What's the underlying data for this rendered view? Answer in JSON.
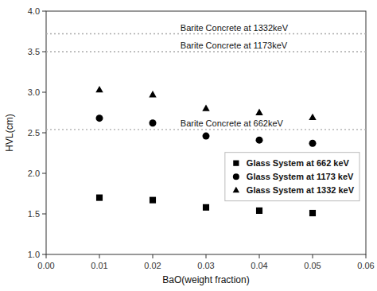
{
  "chart_data": {
    "type": "scatter",
    "xlabel": "BaO(weight fraction)",
    "ylabel": "HVL(cm)",
    "x": [
      0.01,
      0.02,
      0.03,
      0.04,
      0.05
    ],
    "series": [
      {
        "name": "Glass System at 662 keV",
        "values": [
          1.7,
          1.67,
          1.58,
          1.54,
          1.51
        ],
        "color": "black",
        "marker": "square"
      },
      {
        "name": "Glass System at 1173 keV",
        "values": [
          2.68,
          2.62,
          2.46,
          2.41,
          2.37
        ],
        "color": "black",
        "marker": "circle"
      },
      {
        "name": "Glass System at 1332 keV",
        "values": [
          3.03,
          2.97,
          2.8,
          2.75,
          2.69
        ],
        "color": "black",
        "marker": "triangle"
      }
    ],
    "reference_lines": [
      {
        "value": 2.54,
        "label": "Barite Concrete at 662keV",
        "color": "#aaaaaa",
        "line_style": "dotted"
      },
      {
        "value": 3.5,
        "label": "Barite Concrete at 1173keV",
        "color": "#aaaaaa",
        "line_style": "dotted"
      },
      {
        "value": 3.72,
        "label": "Barite Concrete at 1332keV",
        "color": "#aaaaaa",
        "line_style": "dotted"
      }
    ],
    "xlim": [
      0.0,
      0.06
    ],
    "ylim": [
      1.0,
      4.0
    ],
    "xticks": [
      {
        "value": 0.0,
        "label": "0.00"
      },
      0.01,
      0.02,
      0.03,
      0.04,
      0.05,
      0.06
    ],
    "yticks": [
      {
        "value": 1.0,
        "label": "1.0"
      },
      1.5,
      {
        "value": 2.0,
        "label": "2.0"
      },
      2.5,
      {
        "value": 3.0,
        "label": "3.0"
      },
      3.5,
      {
        "value": 4.0,
        "label": "4.0"
      }
    ],
    "grid": false,
    "legend": "lower right"
  }
}
